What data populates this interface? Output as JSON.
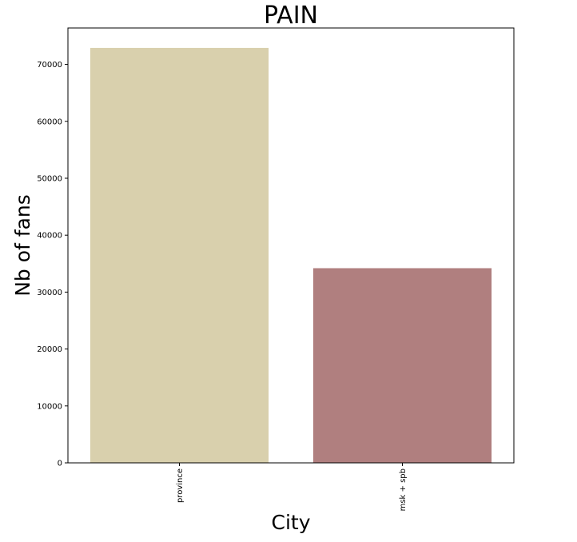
{
  "chart_data": {
    "type": "bar",
    "title": "PAIN",
    "xlabel": "City",
    "ylabel": "Nb of fans",
    "categories": [
      "province",
      "msk + spb"
    ],
    "values": [
      72900,
      34200
    ],
    "colors": [
      "#d9d0ad",
      "#b07f7f"
    ],
    "ylim": [
      0,
      76400
    ],
    "yticks": [
      0,
      10000,
      20000,
      30000,
      40000,
      50000,
      60000,
      70000
    ],
    "grid": false,
    "legend": "none"
  }
}
